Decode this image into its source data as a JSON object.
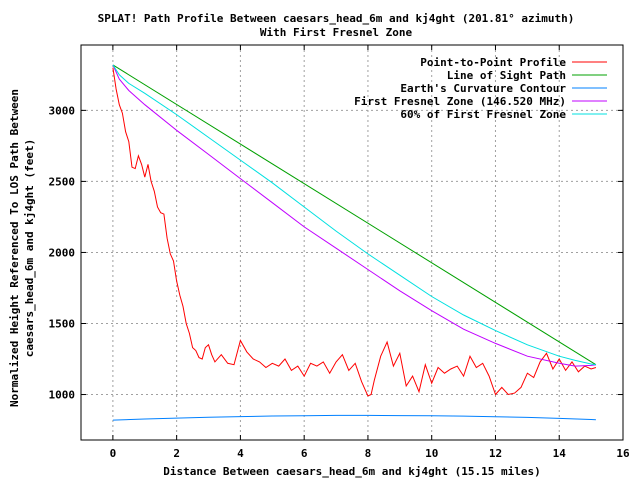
{
  "chart_data": {
    "type": "line",
    "title": "SPLAT! Path Profile Between caesars_head_6m and kj4ght (201.81° azimuth)",
    "subtitle": "With First Fresnel Zone",
    "xlabel": "Distance Between caesars_head_6m and kj4ght (15.15 miles)",
    "ylabel_line1": "Normalized Height Referenced To LOS Path Between",
    "ylabel_line2": "caesars_head_6m and kj4ght (feet)",
    "xlim": [
      -1,
      16
    ],
    "ylim": [
      680,
      3460
    ],
    "xticks": [
      0,
      2,
      4,
      6,
      8,
      10,
      12,
      14,
      16
    ],
    "yticks": [
      1000,
      1500,
      2000,
      2500,
      3000
    ],
    "grid": true,
    "legend_position": "top-right",
    "series": [
      {
        "name": "Point-to-Point Profile",
        "color": "#ff0000",
        "x": [
          0,
          0.1,
          0.2,
          0.3,
          0.4,
          0.5,
          0.6,
          0.7,
          0.8,
          0.9,
          1.0,
          1.1,
          1.2,
          1.3,
          1.4,
          1.5,
          1.6,
          1.7,
          1.8,
          1.9,
          2.0,
          2.1,
          2.2,
          2.3,
          2.4,
          2.5,
          2.6,
          2.7,
          2.8,
          2.9,
          3.0,
          3.1,
          3.2,
          3.4,
          3.6,
          3.8,
          4.0,
          4.2,
          4.4,
          4.6,
          4.8,
          5.0,
          5.2,
          5.4,
          5.6,
          5.8,
          6.0,
          6.2,
          6.4,
          6.6,
          6.8,
          7.0,
          7.2,
          7.4,
          7.6,
          7.8,
          8.0,
          8.1,
          8.2,
          8.4,
          8.6,
          8.8,
          9.0,
          9.2,
          9.4,
          9.6,
          9.8,
          10.0,
          10.2,
          10.4,
          10.6,
          10.8,
          11.0,
          11.2,
          11.4,
          11.6,
          11.8,
          12.0,
          12.2,
          12.4,
          12.6,
          12.8,
          13.0,
          13.2,
          13.4,
          13.6,
          13.8,
          14.0,
          14.2,
          14.4,
          14.6,
          14.8,
          15.0,
          15.15
        ],
        "values": [
          3300,
          3150,
          3040,
          2980,
          2850,
          2780,
          2600,
          2590,
          2680,
          2620,
          2530,
          2620,
          2500,
          2430,
          2320,
          2280,
          2270,
          2100,
          1990,
          1940,
          1800,
          1700,
          1620,
          1500,
          1430,
          1330,
          1310,
          1260,
          1250,
          1330,
          1350,
          1280,
          1230,
          1280,
          1220,
          1210,
          1380,
          1300,
          1250,
          1230,
          1190,
          1220,
          1200,
          1250,
          1170,
          1200,
          1130,
          1220,
          1200,
          1230,
          1150,
          1230,
          1280,
          1170,
          1220,
          1090,
          990,
          1000,
          1100,
          1270,
          1370,
          1200,
          1290,
          1060,
          1130,
          1020,
          1210,
          1080,
          1190,
          1150,
          1180,
          1200,
          1130,
          1270,
          1190,
          1220,
          1130,
          1000,
          1050,
          1000,
          1010,
          1050,
          1150,
          1120,
          1230,
          1290,
          1180,
          1250,
          1170,
          1230,
          1160,
          1200,
          1180,
          1190
        ]
      },
      {
        "name": "Line of Sight Path",
        "color": "#00a000",
        "x": [
          0,
          15.15
        ],
        "values": [
          3320,
          1210
        ]
      },
      {
        "name": "Earth's Curvature Contour",
        "color": "#0080ff",
        "x": [
          0,
          1,
          2,
          3,
          4,
          5,
          6,
          7,
          8,
          9,
          10,
          11,
          12,
          13,
          14,
          15,
          15.15
        ],
        "values": [
          820,
          828,
          834,
          840,
          845,
          849,
          851,
          853,
          853,
          852,
          850,
          848,
          844,
          839,
          832,
          824,
          822
        ]
      },
      {
        "name": "First Fresnel Zone (146.520 MHz)",
        "color": "#c000ff",
        "x": [
          0,
          0.2,
          0.5,
          1,
          2,
          3,
          4,
          5,
          6,
          7,
          8,
          9,
          10,
          11,
          12,
          13,
          14,
          14.5,
          15,
          15.15
        ],
        "values": [
          3320,
          3220,
          3140,
          3040,
          2860,
          2690,
          2520,
          2350,
          2180,
          2030,
          1880,
          1730,
          1590,
          1460,
          1360,
          1270,
          1220,
          1200,
          1205,
          1210
        ]
      },
      {
        "name": "60% of First Fresnel Zone",
        "color": "#00e0e0",
        "x": [
          0,
          0.2,
          0.5,
          1,
          2,
          3,
          4,
          5,
          6,
          7,
          8,
          9,
          10,
          11,
          12,
          13,
          14,
          14.5,
          15,
          15.15
        ],
        "values": [
          3320,
          3250,
          3190,
          3120,
          2970,
          2810,
          2650,
          2490,
          2320,
          2150,
          1990,
          1840,
          1690,
          1560,
          1450,
          1350,
          1270,
          1240,
          1215,
          1210
        ]
      }
    ]
  }
}
